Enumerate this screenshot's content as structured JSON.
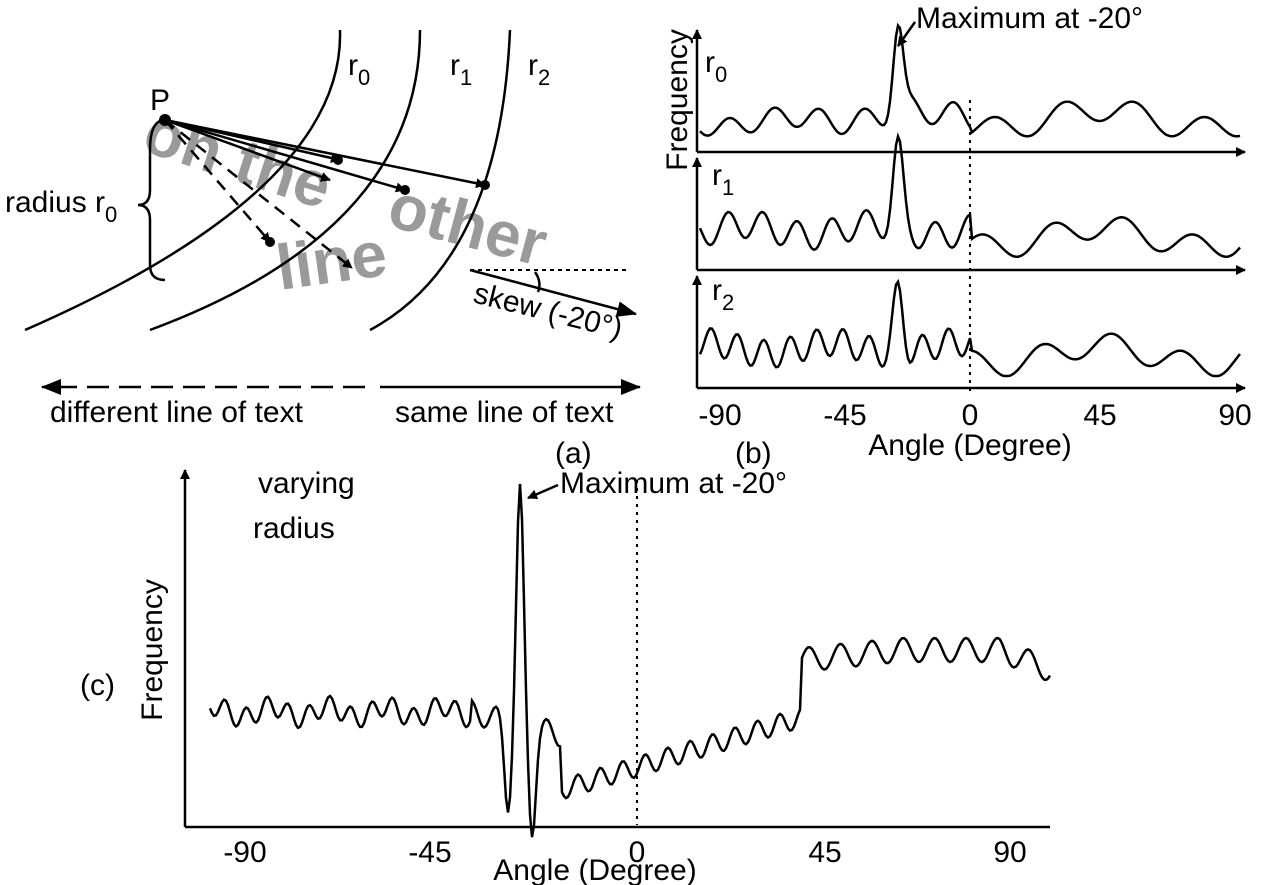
{
  "panel_a": {
    "point": "P",
    "radii": [
      {
        "base": "r",
        "sub": "0"
      },
      {
        "base": "r",
        "sub": "1"
      },
      {
        "base": "r",
        "sub": "2"
      }
    ],
    "radius_label": {
      "base": "radius r",
      "sub": "0"
    },
    "overlay_words": [
      "on the",
      "other",
      "line"
    ],
    "skew": "skew (-20°)",
    "different": "different line of text",
    "same": "same line of text",
    "caption": "(a)"
  },
  "panel_b": {
    "annotation": "Maximum at -20°",
    "traces": [
      {
        "base": "r",
        "sub": "0"
      },
      {
        "base": "r",
        "sub": "1"
      },
      {
        "base": "r",
        "sub": "2"
      }
    ],
    "ylabel": "Frequency",
    "xticks": [
      "-90",
      "-45",
      "0",
      "45",
      "90"
    ],
    "xlabel": "Angle (Degree)",
    "caption": "(b)"
  },
  "panel_c": {
    "label_lines": [
      "varying",
      "radius"
    ],
    "annotation": "Maximum at -20°",
    "ylabel": "Frequency",
    "xticks": [
      "-90",
      "-45",
      "0",
      "45",
      "90"
    ],
    "xlabel": "Angle (Degree)",
    "caption": "(c)"
  }
}
